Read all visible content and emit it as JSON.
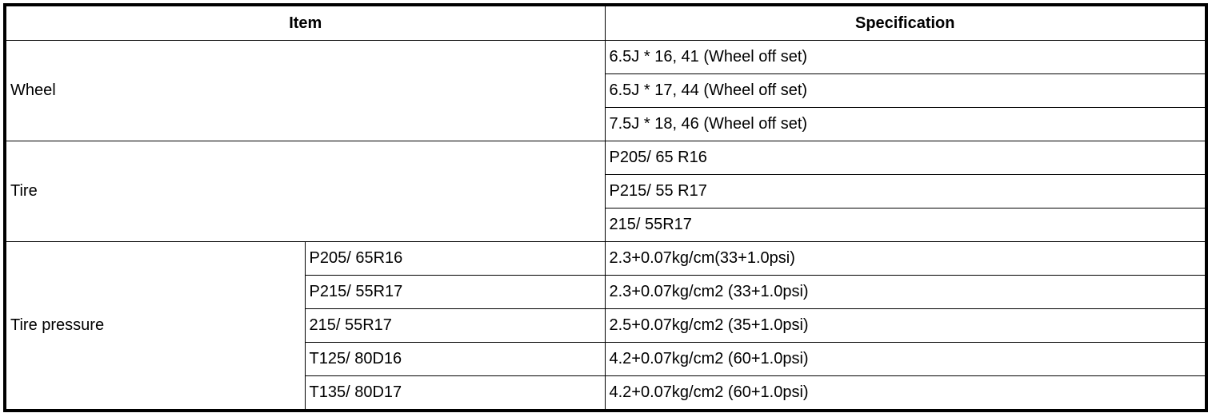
{
  "headers": {
    "item": "Item",
    "specification": "Specification"
  },
  "wheel": {
    "label": "Wheel",
    "specs": [
      "6.5J * 16, 41 (Wheel off set)",
      "6.5J * 17, 44 (Wheel off set)",
      "7.5J * 18, 46 (Wheel off set)"
    ]
  },
  "tire": {
    "label": "Tire",
    "specs": [
      "P205/ 65 R16",
      "P215/ 55 R17",
      "215/ 55R17"
    ]
  },
  "tire_pressure": {
    "label": "Tire pressure",
    "rows": [
      {
        "size": "P205/ 65R16",
        "spec": "2.3+0.07kg/cm(33+1.0psi)"
      },
      {
        "size": "P215/ 55R17",
        "spec": "2.3+0.07kg/cm2 (33+1.0psi)"
      },
      {
        "size": "215/ 55R17",
        "spec": "2.5+0.07kg/cm2 (35+1.0psi)"
      },
      {
        "size": "T125/ 80D16",
        "spec": "4.2+0.07kg/cm2 (60+1.0psi)"
      },
      {
        "size": "T135/ 80D17",
        "spec": "4.2+0.07kg/cm2 (60+1.0psi)"
      }
    ]
  }
}
